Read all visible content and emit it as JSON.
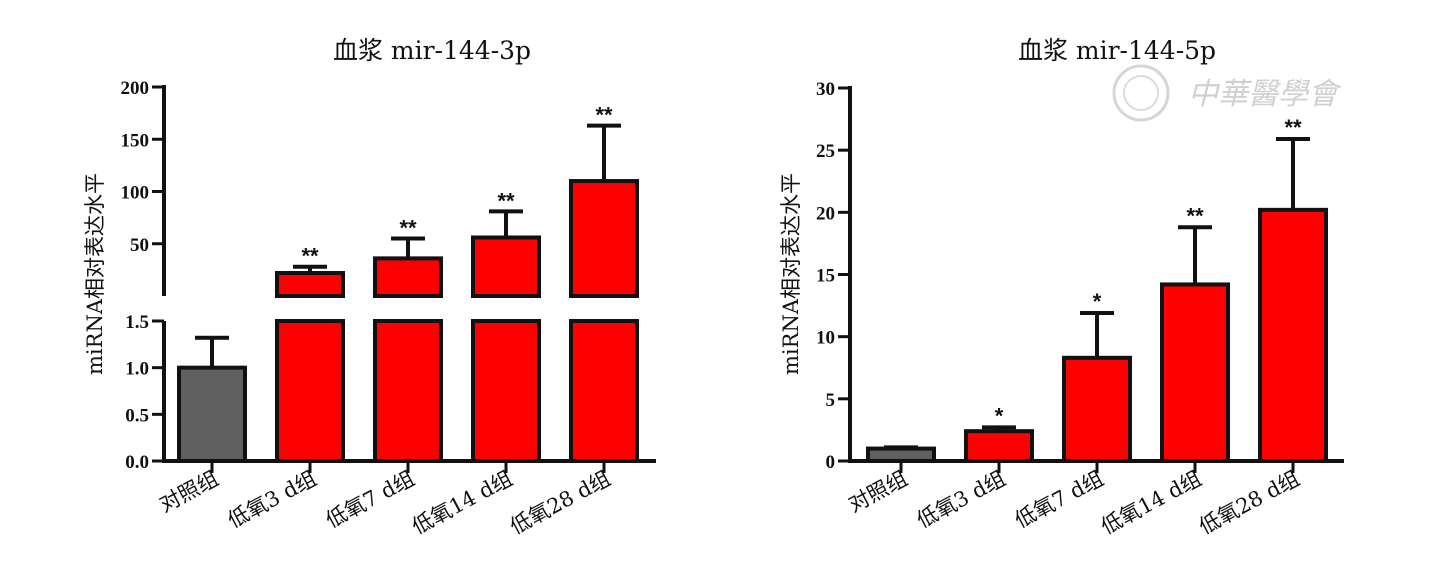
{
  "watermark": {
    "text": "中華醫學會",
    "logo_icon": "society-seal-icon"
  },
  "colors": {
    "control": "#606060",
    "hypoxia": "#ff0000",
    "axis": "#111111"
  },
  "chart_data": [
    {
      "type": "bar",
      "title": "血浆 mir-144-3p",
      "ylabel": "miRNA相对表达水平",
      "xlabel": "",
      "categories": [
        "对照组",
        "低氧3 d组",
        "低氧7 d组",
        "低氧14 d组",
        "低氧28 d组"
      ],
      "values": [
        1.0,
        22,
        36,
        56,
        110
      ],
      "errors": [
        0.32,
        6,
        19,
        25,
        53
      ],
      "significance": [
        "",
        "**",
        "**",
        "**",
        "**"
      ],
      "broken_axis": true,
      "ylim_lower": [
        0,
        1.5
      ],
      "ylim_upper": [
        0,
        200
      ],
      "yticks_lower": [
        "0.0",
        "0.5",
        "1.0",
        "1.5"
      ],
      "yticks_upper": [
        "50",
        "100",
        "150",
        "200"
      ],
      "grid": false,
      "legend": "none"
    },
    {
      "type": "bar",
      "title": "血浆 mir-144-5p",
      "ylabel": "miRNA相对表达水平",
      "xlabel": "",
      "categories": [
        "对照组",
        "低氧3 d组",
        "低氧7 d组",
        "低氧14 d组",
        "低氧28 d组"
      ],
      "values": [
        1.0,
        2.4,
        8.3,
        14.2,
        20.2
      ],
      "errors": [
        0.1,
        0.3,
        3.6,
        4.6,
        5.7
      ],
      "significance": [
        "",
        "*",
        "*",
        "**",
        "**"
      ],
      "ylim": [
        0,
        30
      ],
      "yticks": [
        "0",
        "5",
        "10",
        "15",
        "20",
        "25",
        "30"
      ],
      "grid": false,
      "legend": "none"
    }
  ]
}
